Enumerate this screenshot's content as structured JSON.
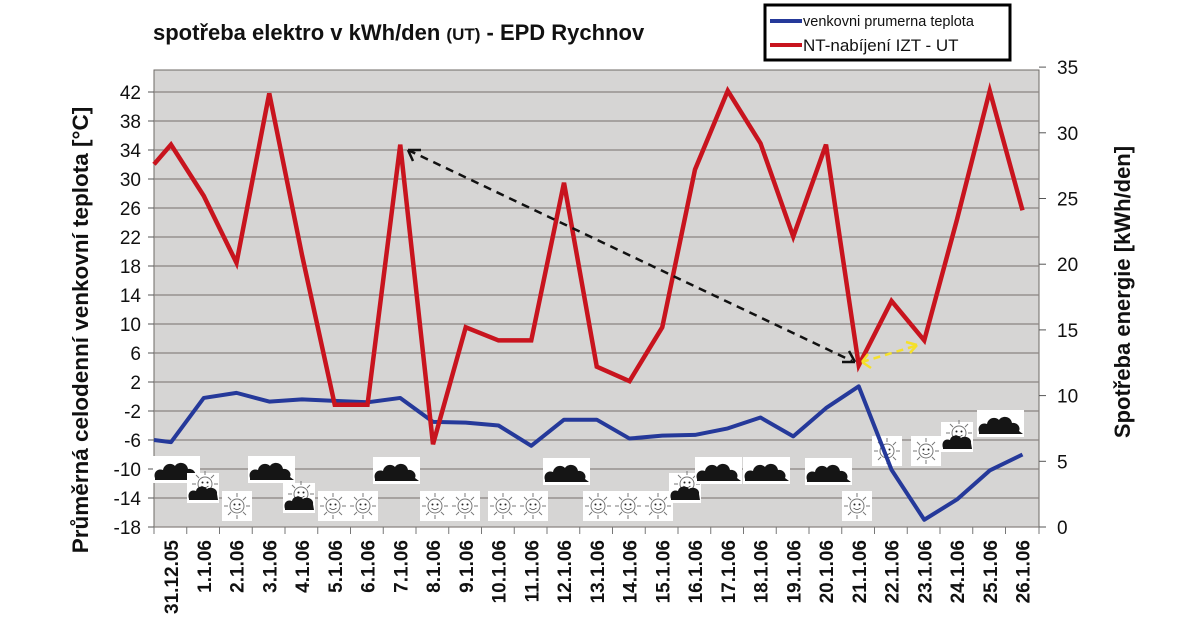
{
  "title": {
    "main": "spotřeba elektro v kWh/den ",
    "small": "(UT)",
    "tail": " - EPD Rychnov"
  },
  "legend": [
    {
      "label": "venkovni prumerna teplota",
      "color": "#25399a"
    },
    {
      "label": "NT-nabíjení IZT - UT",
      "color": "#c8141e"
    }
  ],
  "axes": {
    "left_label": "Průměrná celodenní venkovní teplota [°C]",
    "right_label": "Spotřeba energie [kWh/den]",
    "left_ticks": [
      "42",
      "38",
      "34",
      "30",
      "26",
      "22",
      "18",
      "14",
      "10",
      "6",
      "2",
      "-2",
      "-6",
      "-10",
      "-14",
      "-18"
    ],
    "right_ticks": [
      "35",
      "30",
      "25",
      "20",
      "15",
      "10",
      "5",
      "0"
    ]
  },
  "colors": {
    "plot_bg": "#d6d5d4",
    "grid": "#8a8580",
    "temp_line": "#25399a",
    "energy_line": "#c8141e",
    "arrow_black": "#111111",
    "arrow_yellow": "#f5e02a"
  },
  "chart_data": {
    "type": "line",
    "title": "spotřeba elektro v kWh/den (UT) - EPD Rychnov",
    "xlabel": "",
    "categories": [
      "31.12.05",
      "1.1.06",
      "2.1.06",
      "3.1.06",
      "4.1.06",
      "5.1.06",
      "6.1.06",
      "7.1.06",
      "8.1.06",
      "9.1.06",
      "10.1.06",
      "11.1.06",
      "12.1.06",
      "13.1.06",
      "14.1.06",
      "15.1.06",
      "16.1.06",
      "17.1.06",
      "18.1.06",
      "19.1.06",
      "20.1.06",
      "21.1.06",
      "22.1.06",
      "23.1.06",
      "24.1.06",
      "25.1.06",
      "26.1.06"
    ],
    "series": [
      {
        "name": "venkovni prumerna teplota",
        "axis": "left",
        "ylabel": "Průměrná celodenní venkovní teplota [°C]",
        "ylim": [
          -18,
          42
        ],
        "values": [
          -6.3,
          -0.2,
          0.5,
          -0.7,
          -0.4,
          -0.6,
          -0.8,
          -0.2,
          -3.5,
          -3.6,
          -4.0,
          -6.8,
          -3.2,
          -3.2,
          -5.8,
          -5.4,
          -5.3,
          -4.4,
          -2.9,
          -5.5,
          -1.6,
          1.4,
          -10.1,
          -17.0,
          -14.2,
          -10.2,
          -8.0
        ]
      },
      {
        "name": "NT-nabíjení IZT - UT",
        "axis": "right",
        "ylabel": "Spotřeba energie [kWh/den]",
        "ylim": [
          0,
          35
        ],
        "values": [
          29.1,
          25.2,
          20.1,
          33.0,
          20.7,
          9.3,
          9.3,
          29.1,
          6.3,
          15.2,
          14.2,
          14.2,
          26.2,
          12.2,
          11.1,
          15.2,
          27.2,
          33.2,
          29.2,
          22.1,
          29.1,
          12.3,
          17.2,
          14.2,
          23.4,
          33.2,
          24.1
        ]
      }
    ],
    "annotations": [
      {
        "type": "dashed-arrow",
        "color": "black",
        "from": "21.1.06",
        "to": "7.1.06",
        "note": "double-headed dashed arrow linking consumption peak 7.1.06 to low 21.1.06"
      },
      {
        "type": "dashed-arrow",
        "color": "yellow",
        "from": "21.1.06",
        "to": "23.1.06"
      }
    ],
    "weather_icons": [
      {
        "date": "31.12.05",
        "icon": "cloud"
      },
      {
        "date": "1.1.06",
        "icon": "sun-behind-cloud"
      },
      {
        "date": "2.1.06",
        "icon": "sun"
      },
      {
        "date": "3.1.06",
        "icon": "cloud"
      },
      {
        "date": "4.1.06",
        "icon": "sun-behind-cloud"
      },
      {
        "date": "5.1.06",
        "icon": "sun"
      },
      {
        "date": "6.1.06",
        "icon": "sun"
      },
      {
        "date": "7.1.06",
        "icon": "cloud"
      },
      {
        "date": "8.1.06",
        "icon": "sun"
      },
      {
        "date": "9.1.06",
        "icon": "sun"
      },
      {
        "date": "10.1.06",
        "icon": "sun"
      },
      {
        "date": "11.1.06",
        "icon": "sun"
      },
      {
        "date": "12.1.06",
        "icon": "cloud"
      },
      {
        "date": "13.1.06",
        "icon": "sun"
      },
      {
        "date": "14.1.06",
        "icon": "sun"
      },
      {
        "date": "15.1.06",
        "icon": "sun"
      },
      {
        "date": "16.1.06",
        "icon": "sun-behind-cloud"
      },
      {
        "date": "17.1.06",
        "icon": "cloud"
      },
      {
        "date": "18.1.06",
        "icon": "cloud"
      },
      {
        "date": "20.1.06",
        "icon": "cloud"
      },
      {
        "date": "21.1.06",
        "icon": "sun"
      },
      {
        "date": "22.1.06",
        "icon": "sun"
      },
      {
        "date": "23.1.06",
        "icon": "sun"
      },
      {
        "date": "24.1.06",
        "icon": "sun-behind-cloud"
      },
      {
        "date": "25.1.06",
        "icon": "cloud"
      }
    ],
    "grid": true,
    "legend_position": "top-right"
  }
}
